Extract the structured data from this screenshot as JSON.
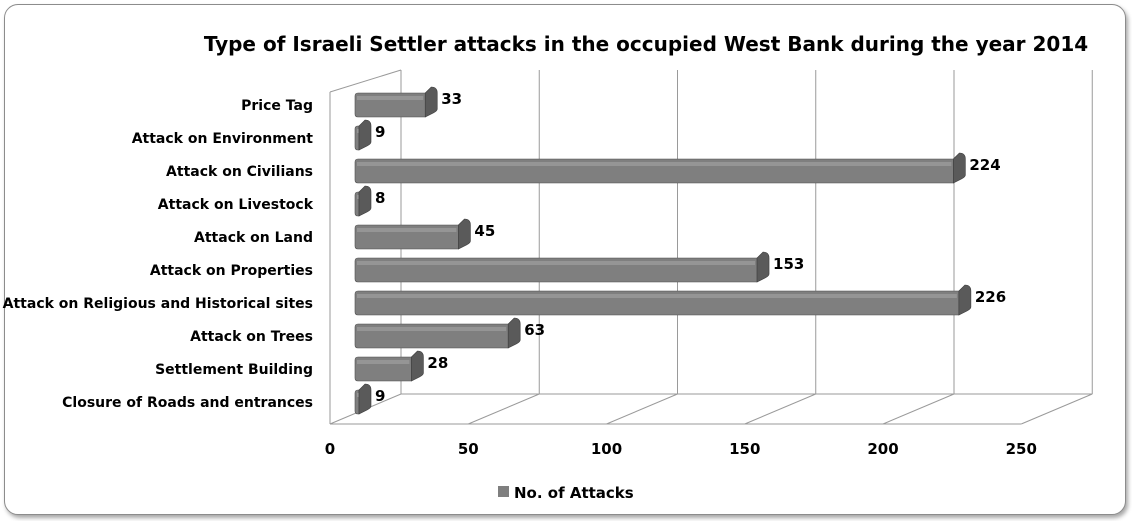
{
  "chart_data": {
    "type": "bar",
    "orientation": "horizontal",
    "title": "Type of Israeli Settler attacks in the occupied West Bank during the year 2014",
    "categories": [
      "Price Tag",
      "Attack on Environment",
      "Attack on Civilians",
      "Attack on Livestock",
      "Attack on Land",
      "Attack on Properties",
      "Attack on Religious and Historical sites",
      "Attack on Trees",
      "Settlement Building",
      "Closure of Roads and entrances"
    ],
    "series": [
      {
        "name": "No. of Attacks",
        "values": [
          33,
          9,
          224,
          8,
          45,
          153,
          226,
          63,
          28,
          9
        ]
      }
    ],
    "xlim": [
      0,
      250
    ],
    "x_ticks": [
      "0",
      "50",
      "100",
      "150",
      "200",
      "250"
    ],
    "grid": true,
    "legend": "bottom",
    "bar_color": "#7f7f7f",
    "bar_cap_color": "#5a5a5a",
    "grid_color": "#9a9a9a",
    "style": "3d"
  }
}
